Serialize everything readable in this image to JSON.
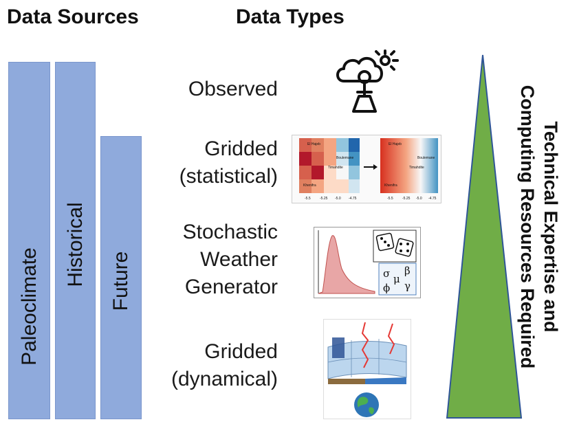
{
  "headings": {
    "data_sources": "Data Sources",
    "data_types": "Data Types"
  },
  "sources": [
    {
      "label": "Paleoclimate"
    },
    {
      "label": "Historical"
    },
    {
      "label": "Future"
    }
  ],
  "types": {
    "observed": {
      "line1": "Observed",
      "icon": "weather-station-icon"
    },
    "gridded_statistical": {
      "line1": "Gridded",
      "line2": "(statistical)"
    },
    "stochastic": {
      "line1": "Stochastic",
      "line2": "Weather",
      "line3": "Generator"
    },
    "gridded_dynamical": {
      "line1": "Gridded",
      "line2": "(dynamical)"
    }
  },
  "map_labels": {
    "place1": "El Hajeb",
    "place2": "Boulemane",
    "place3": "Timahdite",
    "place4": "Khenifra",
    "ticks_x": [
      "-5.5",
      "-5.25",
      "-5.0",
      "-4.75"
    ],
    "ticks_y": [
      "33.25",
      "33.0"
    ]
  },
  "greek": {
    "sigma": "σ",
    "mu": "μ",
    "beta": "β",
    "phi": "ϕ",
    "gamma": "γ"
  },
  "side_label": {
    "line1": "Technical Expertise and",
    "line2": "Computing Resources Required"
  },
  "colors": {
    "bar_fill": "#8faadc",
    "triangle_fill": "#70ad47",
    "triangle_edge": "#2f5597"
  }
}
